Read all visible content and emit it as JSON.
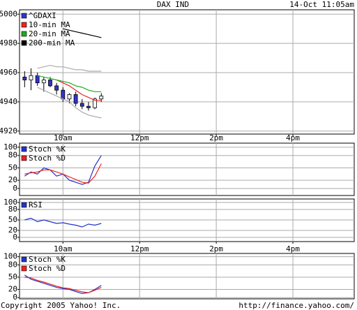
{
  "header": {
    "title": "DAX IND",
    "timestamp": "14-Oct 11:05am"
  },
  "chart_data": [
    {
      "type": "candlestick",
      "x": [
        540,
        550,
        560,
        570,
        580,
        590,
        600,
        610,
        620,
        630,
        640,
        650,
        660
      ],
      "xlim": [
        532,
        1056
      ],
      "xticks": [
        {
          "value": 600,
          "label": "10am"
        },
        {
          "value": 720,
          "label": "12pm"
        },
        {
          "value": 840,
          "label": "2pm"
        },
        {
          "value": 960,
          "label": "4pm"
        }
      ],
      "ylim": [
        4918,
        5003
      ],
      "yticks": [
        4920,
        4940,
        4960,
        4980,
        5000
      ],
      "grid": true,
      "series": [
        {
          "name": "^GDAXI",
          "color": "#3333cc",
          "open": [
            4957,
            4955,
            4958,
            4953,
            4955,
            4951,
            4948,
            4942,
            4945,
            4939,
            4937,
            4936,
            4942
          ],
          "high": [
            4961,
            4963,
            4960,
            4957,
            4957,
            4953,
            4950,
            4946,
            4947,
            4942,
            4940,
            4943,
            4946
          ],
          "low": [
            4950,
            4948,
            4951,
            4947,
            4950,
            4945,
            4940,
            4939,
            4937,
            4935,
            4934,
            4935,
            4940
          ],
          "close": [
            4955,
            4958,
            4953,
            4955,
            4951,
            4948,
            4942,
            4945,
            4939,
            4937,
            4936,
            4942,
            4944
          ]
        },
        {
          "name": "10-min MA",
          "color": "#ee2222",
          "values": [
            null,
            null,
            null,
            null,
            null,
            4955,
            4953,
            4951,
            4948,
            4945,
            4943,
            4941,
            4941
          ]
        },
        {
          "name": "20-min MA",
          "color": "#22aa22",
          "values": [
            null,
            null,
            4958,
            4957,
            4956,
            4955,
            4954,
            4953,
            4951,
            4950,
            4948,
            4947,
            4947
          ]
        },
        {
          "name": "200-min MA",
          "color": "#000000",
          "values": [
            null,
            null,
            null,
            null,
            null,
            null,
            4990,
            4989,
            4988,
            4987,
            4986,
            4985,
            4984
          ]
        },
        {
          "color": "#aaaaaa",
          "values": [
            null,
            null,
            4963,
            4964,
            4965,
            4964,
            4964,
            4963,
            4962,
            4962,
            4961,
            4961,
            4961
          ]
        },
        {
          "color": "#aaaaaa",
          "values": [
            null,
            null,
            4950,
            4948,
            4946,
            4944,
            4942,
            4940,
            4936,
            4933,
            4931,
            4930,
            4929
          ]
        }
      ]
    },
    {
      "type": "line",
      "x": [
        540,
        550,
        560,
        570,
        580,
        590,
        600,
        610,
        620,
        630,
        640,
        650,
        660
      ],
      "xlim": [
        532,
        1056
      ],
      "xticks": [
        600,
        720,
        840,
        960
      ],
      "ylim": [
        -17,
        110
      ],
      "yticks": [
        0,
        20,
        50,
        80,
        100
      ],
      "grid": true,
      "series": [
        {
          "name": "Stoch %K",
          "color": "#2233cc",
          "values": [
            30,
            40,
            35,
            50,
            45,
            30,
            35,
            20,
            15,
            10,
            15,
            55,
            80
          ]
        },
        {
          "name": "Stoch %D",
          "color": "#ee2222",
          "values": [
            35,
            38,
            40,
            45,
            45,
            40,
            35,
            28,
            22,
            15,
            13,
            30,
            60
          ]
        }
      ]
    },
    {
      "type": "line",
      "x": [
        540,
        550,
        560,
        570,
        580,
        590,
        600,
        610,
        620,
        630,
        640,
        650,
        660
      ],
      "xlim": [
        532,
        1056
      ],
      "xticks": [
        {
          "value": 600,
          "label": "10am"
        },
        {
          "value": 720,
          "label": "12pm"
        },
        {
          "value": 840,
          "label": "2pm"
        },
        {
          "value": 960,
          "label": "4pm"
        }
      ],
      "ylim": [
        -12,
        110
      ],
      "yticks": [
        0,
        20,
        50,
        80,
        100
      ],
      "grid": true,
      "series": [
        {
          "name": "RSI",
          "color": "#2233cc",
          "values": [
            50,
            55,
            45,
            50,
            45,
            40,
            42,
            38,
            35,
            30,
            38,
            35,
            40
          ]
        }
      ]
    },
    {
      "type": "line",
      "x": [
        540,
        550,
        560,
        570,
        580,
        590,
        600,
        610,
        620,
        630,
        640,
        650,
        660
      ],
      "xlim": [
        532,
        1056
      ],
      "xticks": [
        600,
        720,
        840,
        960
      ],
      "ylim": [
        -3,
        108
      ],
      "yticks": [
        0,
        20,
        50,
        80,
        100
      ],
      "grid": true,
      "series": [
        {
          "name": "Stoch %K",
          "color": "#2233cc",
          "values": [
            55,
            45,
            40,
            35,
            30,
            25,
            22,
            20,
            15,
            10,
            12,
            20,
            30
          ]
        },
        {
          "name": "Stoch %D",
          "color": "#ee2222",
          "values": [
            50,
            48,
            42,
            38,
            33,
            28,
            24,
            22,
            18,
            14,
            12,
            18,
            25
          ]
        }
      ]
    }
  ],
  "footer": {
    "copyright": "Copyright 2005 Yahoo! Inc.",
    "url": "http://finance.yahoo.com/"
  }
}
